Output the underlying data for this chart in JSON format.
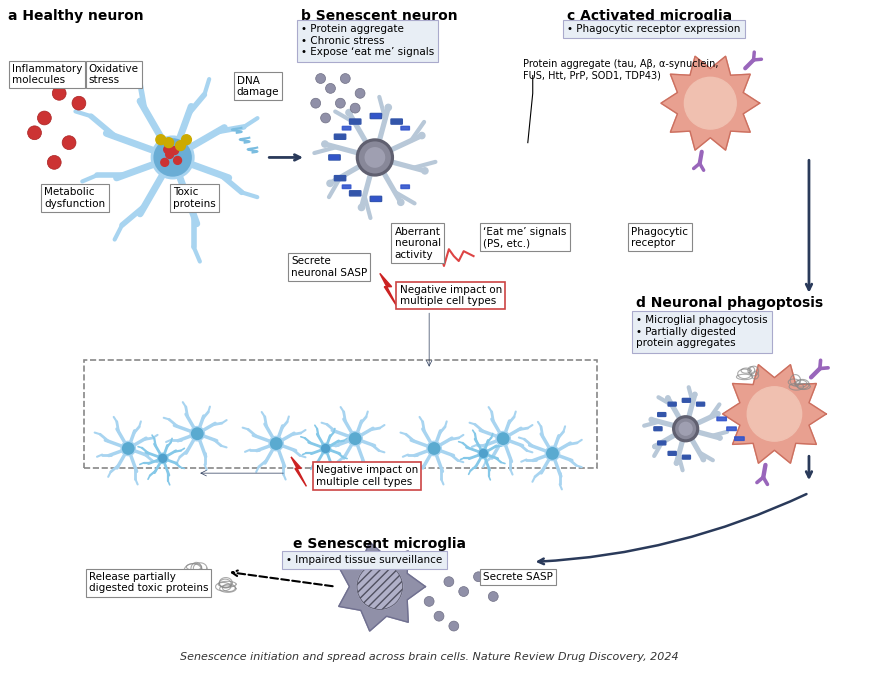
{
  "title": "Senescence initiation and spread across brain cells. Nature Review Drug Discovery, 2024",
  "bg_color": "#ffffff",
  "section_a_title": "a Healthy neuron",
  "section_b_title": "b Senescent neuron",
  "section_c_title": "c Activated microglia",
  "section_d_title": "d Neuronal phagoptosis",
  "section_e_title": "e Senescent microglia",
  "label_a_items": [
    "Inflammatory\nmolecules",
    "Oxidative\nstress",
    "DNA\ndamage",
    "Metabolic\ndysfunction",
    "Toxic\nproteins"
  ],
  "label_b_items": [
    "Protein aggregate",
    "Chronic stress",
    "Expose ‘eat me’ signals"
  ],
  "label_c_items": [
    "Phagocytic receptor expression"
  ],
  "label_d_items": [
    "Microglial phagocytosis",
    "Partially digested\nprotein aggregates"
  ],
  "label_e_items": [
    "Impaired tissue surveillance"
  ],
  "annotation_protein": "Protein aggregate (tau, Aβ, α-synuclein,\nFUS, Htt, PrP, SOD1, TDP43)",
  "annotation_eat_me": "‘Eat me’ signals\n(PS, etc.)",
  "annotation_phagocytic": "Phagocytic\nreceptor",
  "annotation_aberrant": "Aberrant\nneuronal\nactivity",
  "annotation_sasp_neuronal": "Secrete\nneuronal SASP",
  "annotation_neg1": "Negative impact on\nmultiple cell types",
  "annotation_neg2": "Negative impact on\nmultiple cell types",
  "annotation_secrete_sasp": "Secrete SASP",
  "annotation_release": "Release partially\ndigested toxic proteins",
  "neuron_healthy_color": "#a8d4f0",
  "neuron_healthy_body_color": "#7bbde0",
  "neuron_senescent_color": "#b8c8d8",
  "neuron_senescent_body_color": "#8a9aaa",
  "microglia_active_color": "#e8a090",
  "microglia_active_inner": "#f0c0b0",
  "microglia_senescent_color": "#9090a8",
  "microglia_senescent_inner": "#b0b0c8",
  "sasp_particle_color": "#9090a8",
  "red_ball_color": "#cc3333",
  "yellow_ball_color": "#ccaa00",
  "blue_signal_color": "#4466aa",
  "purple_receptor_color": "#9966bb",
  "dark_arrow_color": "#2a3a5a",
  "red_lightning_color": "#cc2222",
  "box_outline_color": "#888888",
  "neg_box_color": "#cc4444",
  "protein_agg_color": "#888888"
}
